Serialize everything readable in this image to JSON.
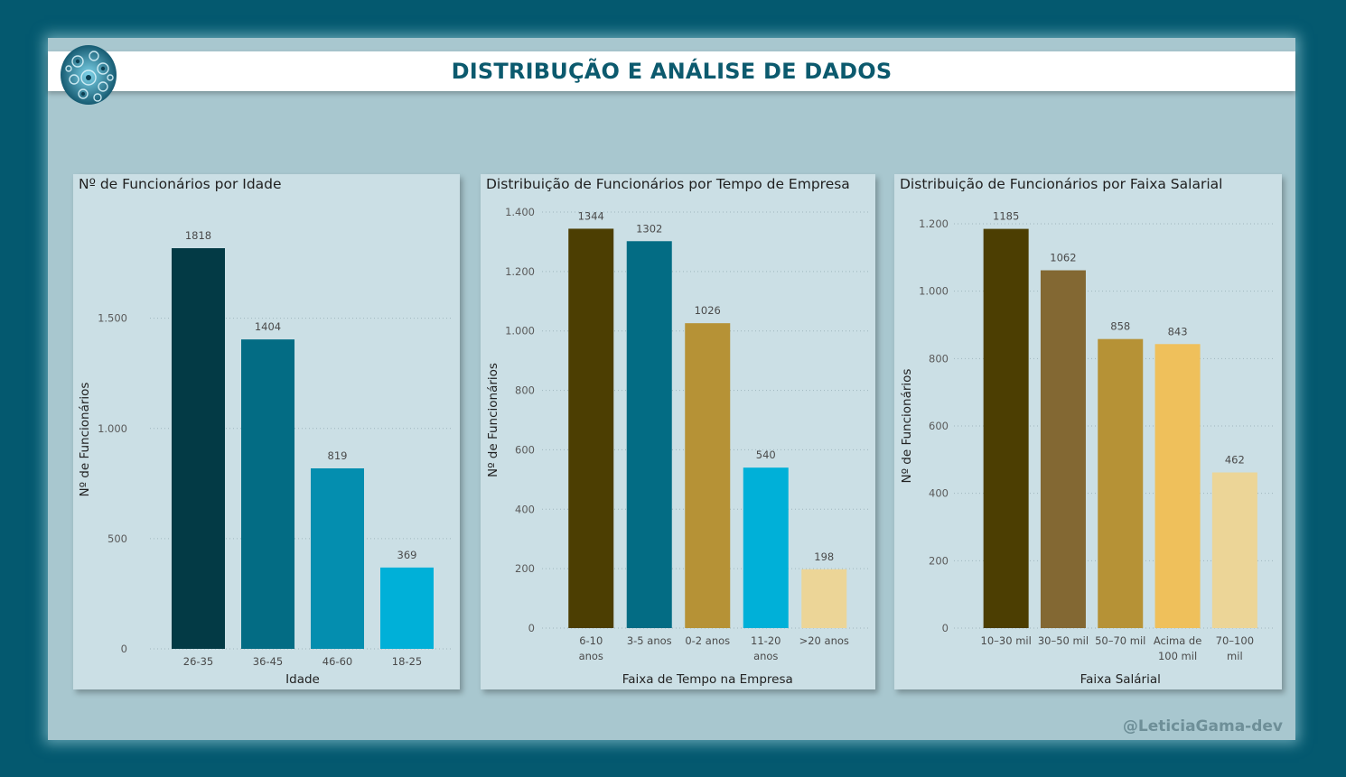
{
  "header": {
    "title": "DISTRIBUÇÃO E ANÁLISE DE DADOS",
    "logo_icon": "brain-gears-icon"
  },
  "watermark": "@LeticiaGama-dev",
  "chart_data": [
    {
      "type": "bar",
      "title": "Nº de Funcionários por Idade",
      "xlabel": "Idade",
      "ylabel": "Nº de Funcionários",
      "categories": [
        "26-35",
        "36-45",
        "46-60",
        "18-25"
      ],
      "values": [
        1818,
        1404,
        819,
        369
      ],
      "colors": [
        "#033a45",
        "#036c84",
        "#048eaf",
        "#00b0d8"
      ],
      "ylim": [
        0,
        1900
      ],
      "yticks": [
        0,
        500,
        1000,
        1500
      ],
      "ytick_labels": [
        "0",
        "500",
        "1.000",
        "1.500"
      ],
      "grid": true
    },
    {
      "type": "bar",
      "title": "Distribuição de Funcionários por Tempo de Empresa",
      "xlabel": "Faixa de Tempo na Empresa",
      "ylabel": "Nº de Funcionários",
      "categories": [
        "6-10 anos",
        "3-5 anos",
        "0-2 anos",
        "11-20 anos",
        ">20 anos"
      ],
      "values": [
        1344,
        1302,
        1026,
        540,
        198
      ],
      "colors": [
        "#4c3e02",
        "#036c84",
        "#b69236",
        "#00b0d8",
        "#ecd597"
      ],
      "ylim": [
        0,
        1400
      ],
      "yticks": [
        0,
        200,
        400,
        600,
        800,
        1000,
        1200,
        1400
      ],
      "ytick_labels": [
        "0",
        "200",
        "400",
        "600",
        "800",
        "1.000",
        "1.200",
        "1.400"
      ],
      "grid": true
    },
    {
      "type": "bar",
      "title": "Distribuição de Funcionários por Faixa Salarial",
      "xlabel": "Faixa Salárial",
      "ylabel": "Nº de Funcionários",
      "categories": [
        "10–30 mil",
        "30–50 mil",
        "50–70 mil",
        "Acima de 100 mil",
        "70–100 mil"
      ],
      "values": [
        1185,
        1062,
        858,
        843,
        462
      ],
      "colors": [
        "#4c3e02",
        "#836833",
        "#b69236",
        "#efc05b",
        "#ecd597"
      ],
      "ylim": [
        0,
        1200
      ],
      "yticks": [
        0,
        200,
        400,
        600,
        800,
        1000,
        1200
      ],
      "ytick_labels": [
        "0",
        "200",
        "400",
        "600",
        "800",
        "1.000",
        "1.200"
      ],
      "grid": true
    }
  ]
}
